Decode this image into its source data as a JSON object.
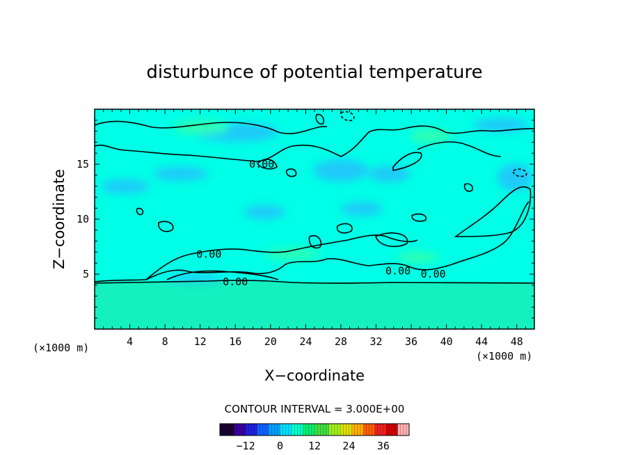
{
  "chart_data": {
    "type": "contour",
    "title": "disturbunce of potential temperature",
    "xlabel": "X−coordinate",
    "ylabel": "Z−coordinate",
    "x_unit": "(×1000 m)",
    "z_unit": "(×1000 m)",
    "xlim": [
      0,
      50
    ],
    "ylim": [
      0,
      20
    ],
    "x_ticks": [
      4,
      8,
      12,
      16,
      20,
      24,
      28,
      32,
      36,
      40,
      44,
      48
    ],
    "y_ticks": [
      5,
      10,
      15
    ],
    "contour_interval_text": "CONTOUR INTERVAL = 3.000E+00",
    "contour_labels": [
      {
        "text": "0.00",
        "x": 19.0,
        "z": 15.0
      },
      {
        "text": "0.00",
        "x": 13.0,
        "z": 6.8
      },
      {
        "text": "0.00",
        "x": 16.0,
        "z": 4.3
      },
      {
        "text": "0.00",
        "x": 34.5,
        "z": 5.3
      },
      {
        "text": "0.00",
        "x": 38.5,
        "z": 5.0
      }
    ],
    "colorbar": {
      "ticks": [
        "−12",
        "0",
        "12",
        "24",
        "36"
      ],
      "tick_values": [
        -12,
        0,
        12,
        24,
        36
      ],
      "range": [
        -21,
        45
      ],
      "colors": [
        "#1a0033",
        "#3a00a0",
        "#2020e0",
        "#1060ff",
        "#00a0ff",
        "#00e0ff",
        "#00ffd0",
        "#00f070",
        "#40e040",
        "#a0f020",
        "#e0e000",
        "#ffb000",
        "#ff6000",
        "#f02020",
        "#d00000",
        "#ffb0b0"
      ]
    },
    "colors": {
      "upper_field": "#00ffe6",
      "lower_field": "#14f0c0",
      "blue_patch": "#2ab8ff",
      "green_patch": "#40ffa0",
      "contour_line": "#000000"
    }
  }
}
